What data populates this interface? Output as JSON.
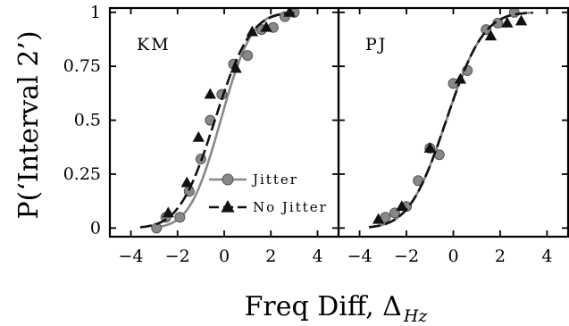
{
  "chart_data": {
    "type": "scatter",
    "ylabel": "P(‘Interval 2’)",
    "xlabel_main": "Freq Diff, Δ",
    "xlabel_sub": "Hz",
    "xlim": [
      -4.9,
      4.9
    ],
    "ylim": [
      -0.04,
      1.02
    ],
    "xticks": [
      -4,
      -2,
      0,
      2,
      4
    ],
    "xtick_labels": [
      "−4",
      "−2",
      "0",
      "2",
      "4"
    ],
    "yticks": [
      0,
      0.25,
      0.5,
      0.75,
      1
    ],
    "ytick_labels": [
      "0",
      "0.25",
      "0.5",
      "0.75",
      "1"
    ],
    "legend": {
      "placement": "panel-1 lower-right",
      "entries": [
        "Jitter",
        "No Jitter"
      ]
    },
    "panels": [
      {
        "label": "KM",
        "series": [
          {
            "name": "Jitter",
            "color": "#888888",
            "marker": "circle",
            "line": "solid",
            "mu": -0.15,
            "sigma": 1.05,
            "curve_x": [
              -3.1,
              3.1
            ],
            "points": [
              [
                -2.9,
                0.0
              ],
              [
                -2.5,
                0.05
              ],
              [
                -1.9,
                0.05
              ],
              [
                -1.5,
                0.17
              ],
              [
                -1.0,
                0.32
              ],
              [
                -0.6,
                0.5
              ],
              [
                -0.1,
                0.62
              ],
              [
                0.4,
                0.76
              ],
              [
                1.0,
                0.8
              ],
              [
                1.6,
                0.92
              ],
              [
                2.1,
                0.93
              ],
              [
                2.6,
                0.98
              ],
              [
                3.0,
                1.0
              ]
            ]
          },
          {
            "name": "No Jitter",
            "color": "#111111",
            "marker": "triangle",
            "line": "dashed",
            "mu": -0.4,
            "sigma": 1.2,
            "curve_x": [
              -3.6,
              3.0
            ],
            "points": [
              [
                -2.4,
                0.07
              ],
              [
                -1.6,
                0.21
              ],
              [
                -1.1,
                0.42
              ],
              [
                -0.6,
                0.62
              ],
              [
                0.5,
                0.74
              ],
              [
                1.2,
                0.91
              ],
              [
                1.8,
                0.93
              ],
              [
                2.8,
                1.0
              ]
            ]
          }
        ]
      },
      {
        "label": "PJ",
        "series": [
          {
            "name": "Jitter",
            "color": "#888888",
            "marker": "circle",
            "line": "solid",
            "mu": -0.3,
            "sigma": 1.25,
            "curve_x": [
              -3.6,
              3.4
            ],
            "points": [
              [
                -2.9,
                0.05
              ],
              [
                -2.5,
                0.07
              ],
              [
                -2.0,
                0.1
              ],
              [
                -1.5,
                0.22
              ],
              [
                -1.0,
                0.37
              ],
              [
                -0.6,
                0.34
              ],
              [
                0.0,
                0.67
              ],
              [
                0.6,
                0.73
              ],
              [
                1.4,
                0.92
              ],
              [
                1.9,
                0.95
              ],
              [
                2.6,
                1.0
              ]
            ]
          },
          {
            "name": "No Jitter",
            "color": "#111111",
            "marker": "triangle",
            "line": "dashed",
            "mu": -0.3,
            "sigma": 1.25,
            "curve_x": [
              -3.6,
              3.4
            ],
            "points": [
              [
                -3.2,
                0.04
              ],
              [
                -2.2,
                0.1
              ],
              [
                -1.0,
                0.37
              ],
              [
                0.3,
                0.69
              ],
              [
                1.6,
                0.89
              ],
              [
                2.3,
                0.95
              ],
              [
                2.9,
                0.96
              ]
            ]
          }
        ]
      }
    ]
  }
}
